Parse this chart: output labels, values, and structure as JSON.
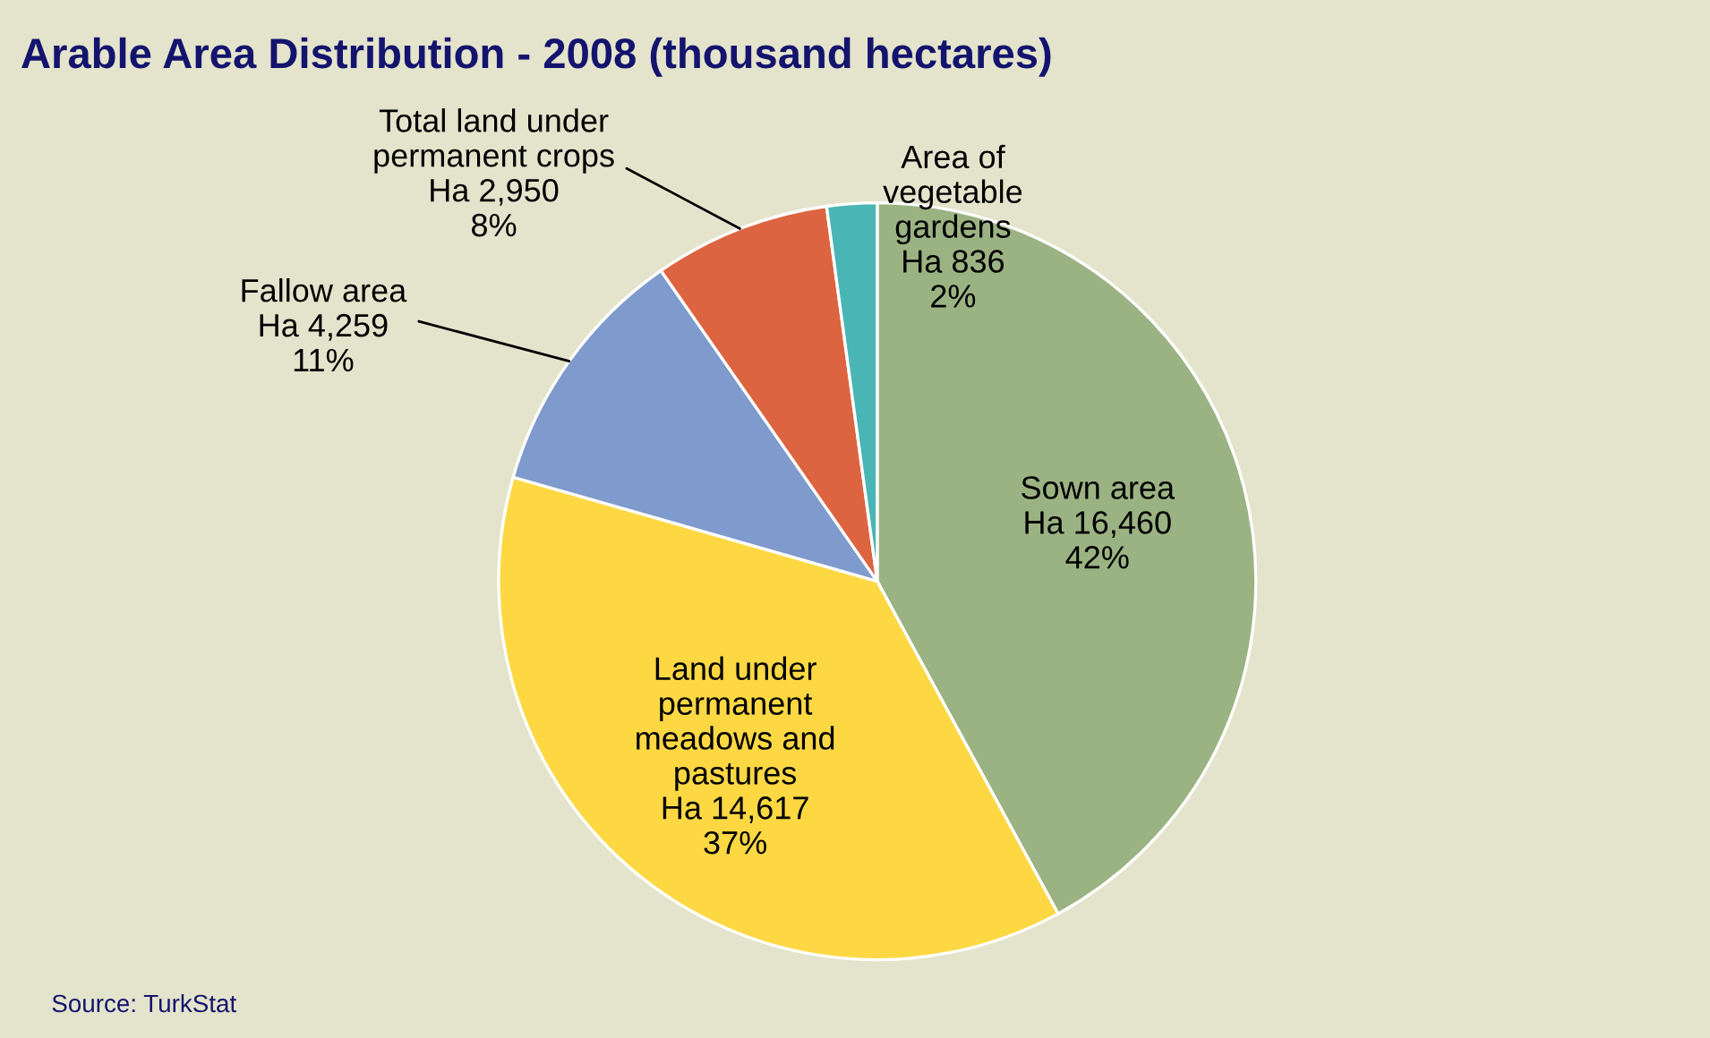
{
  "chart_data": {
    "type": "pie",
    "title": "Arable Area Distribution - 2008 (thousand hectares)",
    "categories": [
      "Sown area",
      "Land under permanent meadows and pastures",
      "Fallow area",
      "Total land under permanent crops",
      "Area of vegetable gardens"
    ],
    "values": [
      16460,
      14617,
      4259,
      2950,
      836
    ],
    "colors": [
      "#9bb382",
      "#fdd843",
      "#7f9acd",
      "#dd6440",
      "#4ab5b5"
    ],
    "value_labels": [
      "Ha 16,460\n42%",
      "Ha 14,617\n37%",
      "Ha 4,259\n11%",
      "Ha 2,950\n8%",
      "Ha 836\n2%"
    ],
    "annotations": [
      "Source: TurkStat"
    ]
  }
}
